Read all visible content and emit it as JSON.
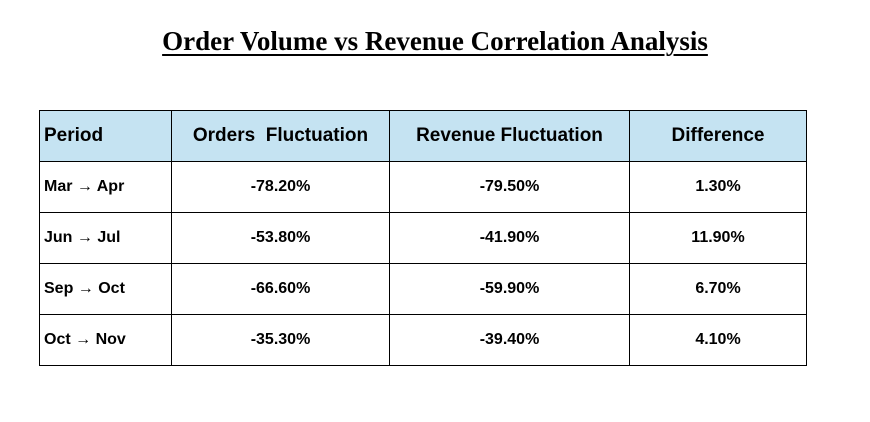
{
  "title": "Order Volume vs Revenue Correlation Analysis",
  "table": {
    "headers": [
      "Period",
      "Orders  Fluctuation",
      "Revenue Fluctuation",
      "Difference"
    ],
    "rows": [
      [
        "Mar → Apr",
        "-78.20%",
        "-79.50%",
        "1.30%"
      ],
      [
        "Jun → Jul",
        "-53.80%",
        "-41.90%",
        "11.90%"
      ],
      [
        "Sep → Oct",
        "-66.60%",
        "-59.90%",
        "6.70%"
      ],
      [
        "Oct → Nov",
        "-35.30%",
        "-39.40%",
        "4.10%"
      ]
    ]
  },
  "colors": {
    "header_background": "#c5e3f2",
    "border": "#000000",
    "text": "#000000"
  }
}
